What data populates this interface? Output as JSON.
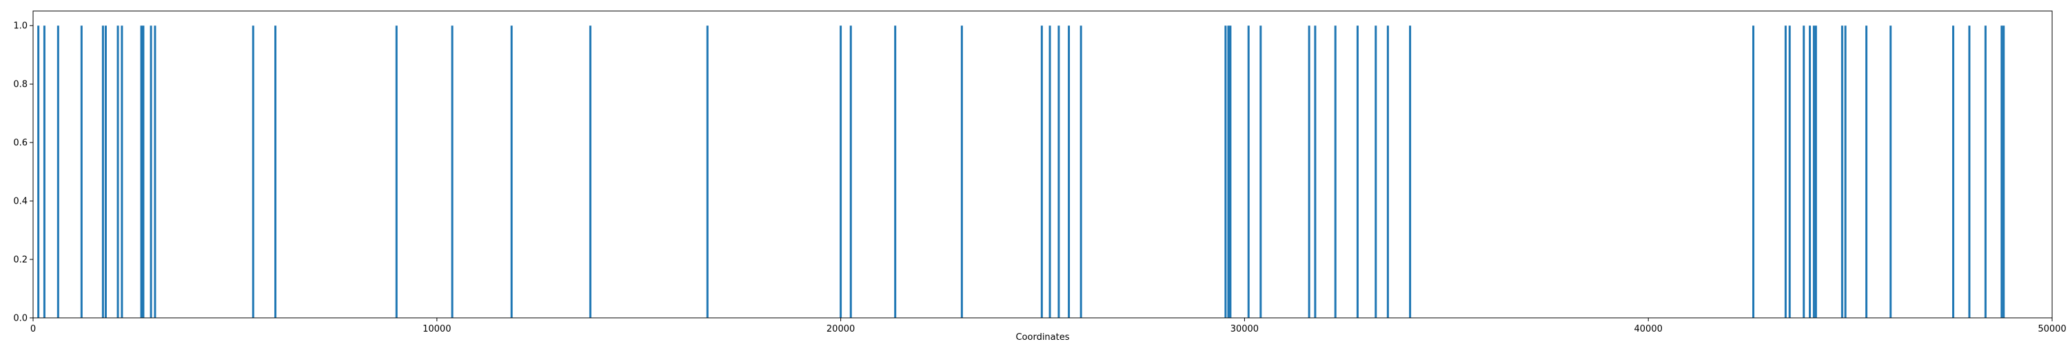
{
  "chart_data": {
    "type": "bar",
    "title": "",
    "xlabel": "Coordinates",
    "ylabel": "",
    "xlim": [
      0,
      50000
    ],
    "ylim": [
      0,
      1.05
    ],
    "grid": false,
    "bar_color": "#1f77b4",
    "x_ticks": [
      0,
      10000,
      20000,
      30000,
      40000,
      50000
    ],
    "y_ticks": [
      0.0,
      0.2,
      0.4,
      0.6,
      0.8,
      1.0
    ],
    "x_tick_labels": [
      "0",
      "10000",
      "20000",
      "30000",
      "40000",
      "50000"
    ],
    "y_tick_labels": [
      "0.0",
      "0.2",
      "0.4",
      "0.6",
      "0.8",
      "1.0"
    ],
    "x": [
      130,
      280,
      620,
      1200,
      1730,
      1800,
      2100,
      2200,
      2680,
      2730,
      2920,
      3020,
      5450,
      6000,
      9000,
      10380,
      11850,
      13800,
      16700,
      20000,
      20250,
      21350,
      23000,
      24980,
      25180,
      25400,
      25650,
      25950,
      29530,
      29600,
      29650,
      30100,
      30400,
      31600,
      31750,
      32250,
      32800,
      33250,
      33550,
      34100,
      42600,
      43400,
      43500,
      43850,
      44000,
      44100,
      44150,
      44800,
      44880,
      45400,
      46000,
      47550,
      47950,
      48350,
      48750,
      48800
    ],
    "values": [
      1,
      1,
      1,
      1,
      1,
      1,
      1,
      1,
      1,
      1,
      1,
      1,
      1,
      1,
      1,
      1,
      1,
      1,
      1,
      1,
      1,
      1,
      1,
      1,
      1,
      1,
      1,
      1,
      1,
      1,
      1,
      1,
      1,
      1,
      1,
      1,
      1,
      1,
      1,
      1,
      1,
      1,
      1,
      1,
      1,
      1,
      1,
      1,
      1,
      1,
      1,
      1,
      1,
      1,
      1,
      1
    ]
  }
}
